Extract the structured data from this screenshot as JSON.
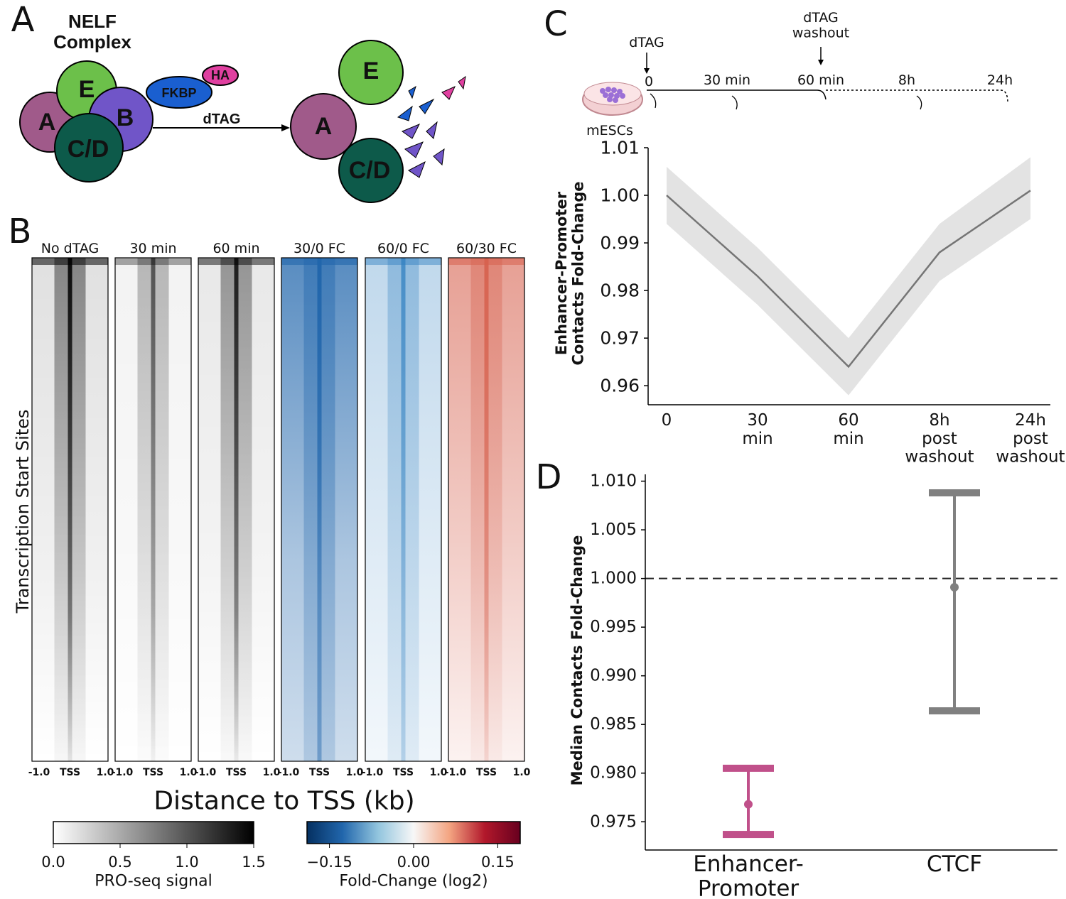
{
  "panel_labels": [
    "A",
    "B",
    "C",
    "D"
  ],
  "diagram": {
    "title": "NELF\nComplex",
    "subunits": [
      "A",
      "E",
      "B",
      "C/D"
    ],
    "tag": "FKBP",
    "epitope": "HA",
    "arrow_label": "dTAG",
    "after": [
      "E",
      "A",
      "C/D"
    ]
  },
  "heatmaps": {
    "panels": [
      {
        "title": "No dTAG",
        "color": "#000000"
      },
      {
        "title": "30 min",
        "color": "#000000"
      },
      {
        "title": "60 min",
        "color": "#000000"
      },
      {
        "title": "30/0 FC",
        "color": "#2166ac"
      },
      {
        "title": "60/0 FC",
        "color": "#2f7fc0"
      },
      {
        "title": "60/30 FC",
        "color": "#d6604d"
      }
    ],
    "x_ticks": [
      "-1.0",
      "TSS",
      "1.0"
    ],
    "y_label": "Transcription Start Sites",
    "x_label": "Distance to TSS (kb)",
    "colorbars": [
      {
        "colormap": [
          "#ffffff",
          "#000000"
        ],
        "lim": [
          0,
          1.5
        ],
        "ticks": [
          {
            "value": 0,
            "label": "0.0"
          },
          0.5,
          {
            "value": 1,
            "label": "1.0"
          },
          1.5
        ],
        "label": "PRO-seq signal"
      },
      {
        "colormap": [
          "#053061",
          "#2166ac",
          "#92c5de",
          "#f7f7f7",
          "#f4a582",
          "#b2182b",
          "#67001f"
        ],
        "lim": [
          -0.19,
          0.19
        ],
        "ticks": [
          {
            "value": -0.15,
            "label": "−0.15"
          },
          {
            "value": 0,
            "label": "0.00"
          },
          0.15
        ],
        "label": "Fold-Change (log2)"
      }
    ]
  },
  "timeline": {
    "treatment": "dTAG",
    "washout": "dTAG\nwashout",
    "times": [
      "0",
      "30 min",
      "60 min",
      "8h",
      "24h"
    ],
    "cells": "mESCs"
  },
  "chart_data": [
    {
      "type": "line",
      "y_label": "Enhancer-Promoter\nContacts Fold-Change",
      "categories": [
        "0",
        "30\nmin",
        "60\nmin",
        "8h\npost\nwashout",
        "24h\npost\nwashout"
      ],
      "ylim": [
        0.956,
        1.01
      ],
      "yticks": [
        0.96,
        0.97,
        0.98,
        0.99,
        {
          "value": 1,
          "label": "1.00"
        },
        1.01
      ],
      "series": [
        {
          "color": "#757575",
          "band_color": "#e3e3e3",
          "values": [
            1.0,
            0.983,
            0.964,
            0.988,
            1.001
          ],
          "lower": [
            0.994,
            0.977,
            0.958,
            0.982,
            0.995
          ],
          "upper": [
            1.006,
            0.989,
            0.97,
            0.994,
            1.008
          ]
        }
      ]
    },
    {
      "type": "errorbar",
      "y_label": "Median Contacts Fold-Change",
      "categories": [
        "Enhancer-\nPromoter",
        "CTCF"
      ],
      "ylim": [
        0.9721,
        1.0107
      ],
      "yticks": [
        0.975,
        {
          "value": 0.98,
          "label": "0.980"
        },
        0.985,
        {
          "value": 0.99,
          "label": "0.990"
        },
        0.995,
        {
          "value": 1,
          "label": "1.000"
        },
        1.005,
        {
          "value": 1.01,
          "label": "1.010"
        }
      ],
      "hline": 1,
      "series": [
        {
          "colors": [
            "#c0508a",
            "#808080"
          ],
          "values": [
            0.9768,
            0.9991
          ],
          "lower": [
            0.9737,
            0.9864
          ],
          "upper": [
            0.9805,
            1.0088
          ]
        }
      ]
    }
  ]
}
